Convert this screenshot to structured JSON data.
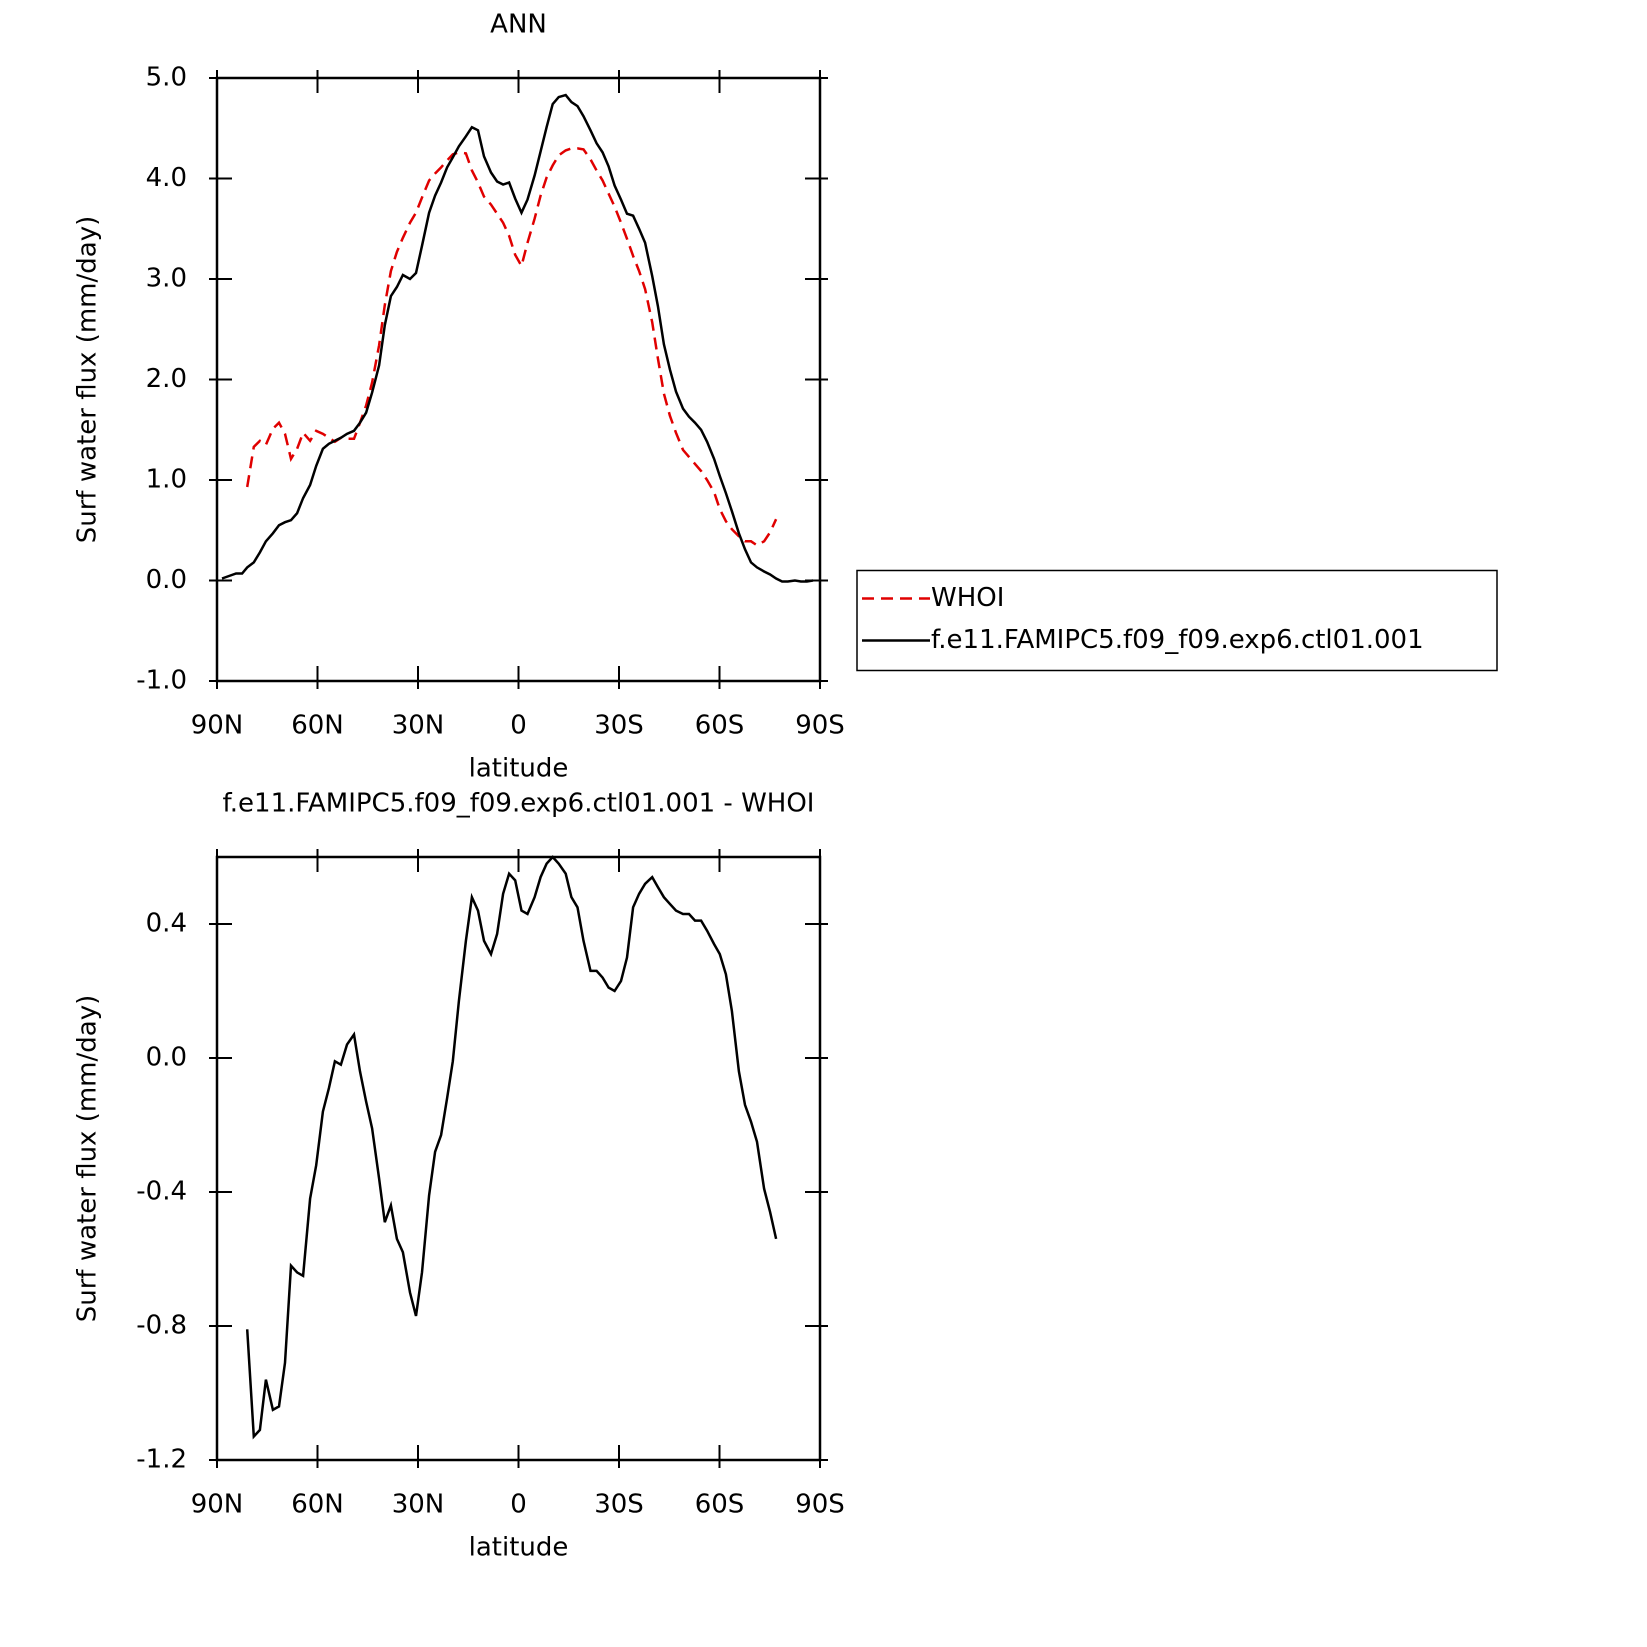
{
  "chart_data": [
    {
      "type": "line",
      "title": "ANN",
      "xlabel": "latitude",
      "ylabel": "Surf water flux (mm/day)",
      "xlim": [
        90,
        -90
      ],
      "xticks": [
        {
          "value": 90,
          "label": "90N"
        },
        {
          "value": 60,
          "label": "60N"
        },
        {
          "value": 30,
          "label": "30N"
        },
        0,
        {
          "value": -30,
          "label": "30S"
        },
        {
          "value": -60,
          "label": "60S"
        },
        {
          "value": -90,
          "label": "90S"
        }
      ],
      "ylim": [
        -1,
        5
      ],
      "yticks": [
        {
          "value": 5,
          "label": "5.0"
        },
        {
          "value": 4,
          "label": "4.0"
        },
        {
          "value": 3,
          "label": "3.0"
        },
        {
          "value": 2,
          "label": "2.0"
        },
        {
          "value": 1,
          "label": "1.0"
        },
        {
          "value": 0,
          "label": "0.0"
        },
        {
          "value": -1,
          "label": "-1.0"
        }
      ],
      "legend": "right",
      "series": [
        {
          "name": "WHOI",
          "color": "#e00000",
          "dashed": true,
          "x": [
            81,
            79,
            77.2,
            75.4,
            73.3,
            71.5,
            69.7,
            67.9,
            66.1,
            64.3,
            62.2,
            60.4,
            58.4,
            56.6,
            54.8,
            53,
            51.2,
            49.1,
            47.3,
            45.5,
            43.7,
            41.6,
            39.9,
            38.1,
            36.3,
            34.5,
            32.4,
            30.6,
            28.8,
            26.7,
            24.9,
            23.1,
            21.3,
            19.6,
            17.8,
            15.7,
            13.9,
            12.1,
            10.3,
            8.2,
            6.4,
            4.6,
            2.8,
            1,
            -0.9,
            -2.7,
            -4.8,
            -6.6,
            -8.4,
            -10.2,
            -12,
            -14.1,
            -15.8,
            -17.6,
            -19.4,
            -21.5,
            -23.3,
            -25.1,
            -26.9,
            -28.7,
            -30.6,
            -32.4,
            -34.2,
            -36,
            -37.8,
            -39.9,
            -41.6,
            -43.4,
            -45.2,
            -47,
            -49.1,
            -50.9,
            -52.7,
            -54.5,
            -56.3,
            -58.4,
            -60.1,
            -61.9,
            -63.7,
            -65.8,
            -67.6,
            -69.4,
            -71.2,
            -73.3,
            -75.1,
            -76.9
          ],
          "values": [
            0.93,
            1.33,
            1.39,
            1.35,
            1.51,
            1.57,
            1.46,
            1.21,
            1.31,
            1.47,
            1.39,
            1.49,
            1.46,
            1.42,
            1.38,
            1.42,
            1.41,
            1.41,
            1.57,
            1.74,
            1.97,
            2.34,
            2.74,
            3.08,
            3.27,
            3.41,
            3.56,
            3.66,
            3.81,
            3.98,
            4.05,
            4.11,
            4.18,
            4.24,
            4.26,
            4.25,
            4.08,
            3.96,
            3.82,
            3.74,
            3.65,
            3.56,
            3.43,
            3.24,
            3.13,
            3.36,
            3.6,
            3.83,
            4.01,
            4.13,
            4.23,
            4.28,
            4.3,
            4.3,
            4.29,
            4.19,
            4.08,
            3.98,
            3.85,
            3.72,
            3.56,
            3.4,
            3.23,
            3.08,
            2.9,
            2.57,
            2.21,
            1.86,
            1.64,
            1.47,
            1.3,
            1.23,
            1.16,
            1.09,
            1.0,
            0.88,
            0.71,
            0.59,
            0.51,
            0.44,
            0.39,
            0.39,
            0.35,
            0.39,
            0.48,
            0.61
          ]
        },
        {
          "name": "f.e11.FAMIPC5.f09_f09.exp6.ctl01.001",
          "color": "#000000",
          "dashed": false,
          "x": [
            88.5,
            84.3,
            82.5,
            81,
            79,
            77.2,
            75.4,
            73.3,
            71.5,
            69.7,
            67.9,
            66.1,
            64.3,
            62.2,
            60.4,
            58.4,
            56.6,
            54.8,
            53,
            51.2,
            49.1,
            47.3,
            45.5,
            43.7,
            41.6,
            39.9,
            38.1,
            36.3,
            34.5,
            32.4,
            30.6,
            28.8,
            26.7,
            24.9,
            23.1,
            21.3,
            19.6,
            17.8,
            15.7,
            13.9,
            12.1,
            10.3,
            8.2,
            6.4,
            4.6,
            2.8,
            1,
            -0.9,
            -2.7,
            -4.8,
            -6.6,
            -8.4,
            -10.2,
            -12,
            -14.1,
            -15.8,
            -17.6,
            -19.4,
            -21.5,
            -23.3,
            -25.1,
            -26.9,
            -28.7,
            -30.6,
            -32.4,
            -34.2,
            -36,
            -37.8,
            -39.9,
            -41.6,
            -43.4,
            -45.2,
            -47,
            -49.1,
            -50.9,
            -52.7,
            -54.5,
            -56.3,
            -58.4,
            -60.1,
            -61.9,
            -63.7,
            -65.8,
            -67.6,
            -69.4,
            -71.2,
            -73.3,
            -75.1,
            -76.9,
            -78.7,
            -80.4,
            -82.5,
            -84.3,
            -86.1,
            -87.9
          ],
          "values": [
            0.02,
            0.07,
            0.07,
            0.13,
            0.18,
            0.28,
            0.39,
            0.47,
            0.55,
            0.58,
            0.6,
            0.67,
            0.82,
            0.95,
            1.14,
            1.31,
            1.36,
            1.39,
            1.42,
            1.46,
            1.49,
            1.57,
            1.67,
            1.87,
            2.14,
            2.54,
            2.83,
            2.92,
            3.04,
            3.0,
            3.06,
            3.33,
            3.66,
            3.83,
            3.96,
            4.11,
            4.21,
            4.32,
            4.42,
            4.51,
            4.48,
            4.22,
            4.06,
            3.97,
            3.94,
            3.96,
            3.8,
            3.66,
            3.79,
            4.03,
            4.27,
            4.51,
            4.74,
            4.81,
            4.83,
            4.76,
            4.72,
            4.62,
            4.48,
            4.35,
            4.26,
            4.12,
            3.93,
            3.79,
            3.65,
            3.63,
            3.5,
            3.36,
            3.03,
            2.73,
            2.35,
            2.1,
            1.88,
            1.71,
            1.63,
            1.57,
            1.5,
            1.38,
            1.21,
            1.04,
            0.87,
            0.69,
            0.47,
            0.31,
            0.18,
            0.13,
            0.09,
            0.06,
            0.02,
            -0.01,
            -0.01,
            0.0,
            -0.01,
            -0.01,
            0.0
          ]
        }
      ]
    },
    {
      "type": "line",
      "title": "f.e11.FAMIPC5.f09_f09.exp6.ctl01.001 - WHOI",
      "xlabel": "latitude",
      "ylabel": "Surf water flux (mm/day)",
      "xlim": [
        90,
        -90
      ],
      "xticks": [
        {
          "value": 90,
          "label": "90N"
        },
        {
          "value": 60,
          "label": "60N"
        },
        {
          "value": 30,
          "label": "30N"
        },
        0,
        {
          "value": -30,
          "label": "30S"
        },
        {
          "value": -60,
          "label": "60S"
        },
        {
          "value": -90,
          "label": "90S"
        }
      ],
      "ylim": [
        -1.2,
        0.6
      ],
      "yticks": [
        0.4,
        {
          "value": 0,
          "label": "0.0"
        },
        -0.4,
        -0.8,
        -1.2
      ],
      "color": "#000000",
      "x": [
        81,
        79,
        77.2,
        75.4,
        73.3,
        71.5,
        69.7,
        67.9,
        66.1,
        64.3,
        62.2,
        60.4,
        58.4,
        56.6,
        54.8,
        53,
        51.2,
        49.1,
        47.3,
        45.5,
        43.7,
        41.6,
        39.9,
        38.1,
        36.3,
        34.5,
        32.4,
        30.6,
        28.8,
        26.7,
        24.9,
        23.1,
        21.3,
        19.6,
        17.8,
        15.7,
        13.9,
        12.1,
        10.3,
        8.2,
        6.4,
        4.6,
        2.8,
        1,
        -0.9,
        -2.7,
        -4.8,
        -6.6,
        -8.4,
        -10.2,
        -12,
        -14.1,
        -15.8,
        -17.6,
        -19.4,
        -21.5,
        -23.3,
        -25.1,
        -26.9,
        -28.7,
        -30.6,
        -32.4,
        -34.2,
        -36,
        -37.8,
        -39.9,
        -41.6,
        -43.4,
        -45.2,
        -47,
        -49.1,
        -50.9,
        -52.7,
        -54.5,
        -56.3,
        -58.4,
        -60.1,
        -61.9,
        -63.7,
        -65.8,
        -67.6,
        -69.4,
        -71.2,
        -73.3,
        -75.1,
        -76.9
      ],
      "values": [
        -0.81,
        -1.13,
        -1.11,
        -0.96,
        -1.05,
        -1.04,
        -0.91,
        -0.62,
        -0.64,
        -0.65,
        -0.42,
        -0.32,
        -0.16,
        -0.09,
        -0.01,
        -0.02,
        0.04,
        0.07,
        -0.04,
        -0.13,
        -0.21,
        -0.36,
        -0.49,
        -0.44,
        -0.54,
        -0.58,
        -0.7,
        -0.77,
        -0.64,
        -0.41,
        -0.28,
        -0.23,
        -0.12,
        -0.01,
        0.17,
        0.35,
        0.48,
        0.44,
        0.35,
        0.31,
        0.37,
        0.49,
        0.55,
        0.53,
        0.44,
        0.43,
        0.48,
        0.54,
        0.58,
        0.6,
        0.58,
        0.55,
        0.48,
        0.45,
        0.35,
        0.26,
        0.26,
        0.24,
        0.21,
        0.2,
        0.23,
        0.3,
        0.45,
        0.49,
        0.52,
        0.54,
        0.51,
        0.48,
        0.46,
        0.44,
        0.43,
        0.43,
        0.41,
        0.41,
        0.38,
        0.34,
        0.31,
        0.25,
        0.14,
        -0.04,
        -0.14,
        -0.19,
        -0.25,
        -0.39,
        -0.46,
        -0.54
      ]
    }
  ]
}
